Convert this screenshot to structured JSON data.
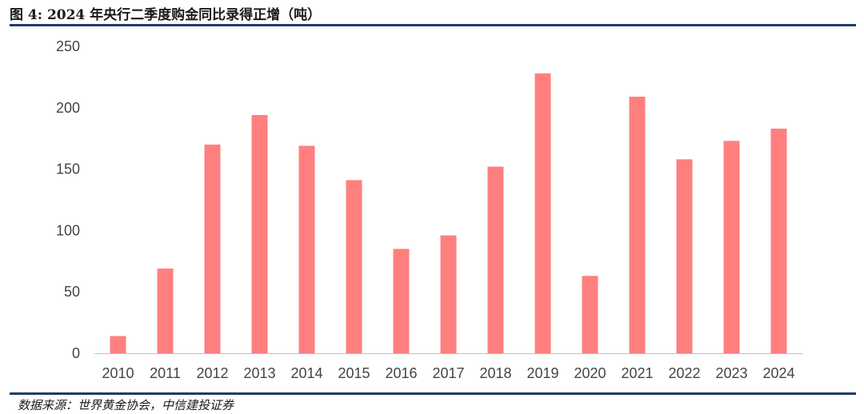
{
  "figure": {
    "title": "图 4: 2024 年央行二季度购金同比录得正增（吨）",
    "source": "数据来源：世界黄金协会，中信建投证券"
  },
  "colors": {
    "bar": "#ff7f7f",
    "rule": "#1f3b63",
    "axis": "#bfbfbf"
  },
  "chart_data": {
    "type": "bar",
    "title": "2024 年央行二季度购金同比录得正增（吨）",
    "xlabel": "",
    "ylabel": "",
    "categories": [
      "2010",
      "2011",
      "2012",
      "2013",
      "2014",
      "2015",
      "2016",
      "2017",
      "2018",
      "2019",
      "2020",
      "2021",
      "2022",
      "2023",
      "2024"
    ],
    "values": [
      14,
      69,
      170,
      194,
      169,
      141,
      85,
      96,
      152,
      228,
      63,
      209,
      158,
      173,
      183
    ],
    "ylim": [
      0,
      250
    ],
    "yticks": [
      "0",
      "50",
      "100",
      "150",
      "200",
      "250"
    ],
    "grid": false,
    "legend": "none"
  }
}
